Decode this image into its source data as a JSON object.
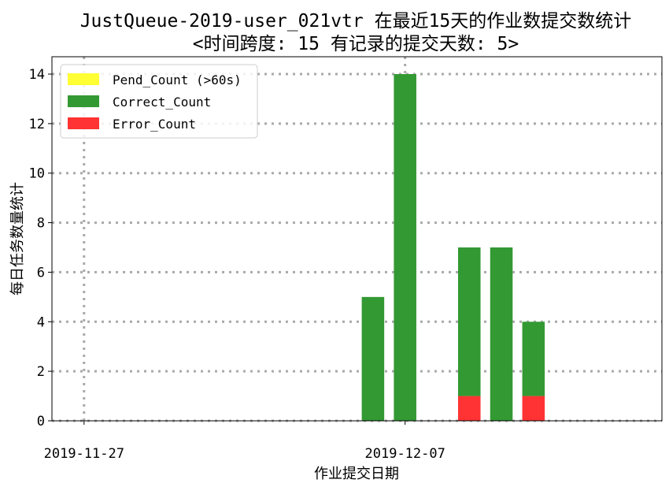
{
  "chart_data": {
    "type": "bar",
    "stacked": true,
    "title_line1": "JustQueue-2019-user_021vtr 在最近15天的作业数提交数统计",
    "title_line2": "<时间跨度: 15  有记录的提交天数: 5>",
    "xlabel": "作业提交日期",
    "ylabel": "每日任务数量统计",
    "x_dates": [
      "2019-12-06",
      "2019-12-07",
      "2019-12-09",
      "2019-12-10",
      "2019-12-11"
    ],
    "x_tick_labels": [
      "2019-11-27",
      "2019-12-07"
    ],
    "x_tick_dates": [
      "2019-11-27",
      "2019-12-07"
    ],
    "xlim": [
      "2019-11-26",
      "2019-12-15"
    ],
    "ylim": [
      0,
      14.7
    ],
    "y_ticks": [
      0,
      2,
      4,
      6,
      8,
      10,
      12,
      14
    ],
    "grid": true,
    "legend_position": "upper-left",
    "series": [
      {
        "name": "Pend_Count (>60s)",
        "color": "#ffff33",
        "values": [
          0,
          0,
          0,
          0,
          0
        ]
      },
      {
        "name": "Correct_Count",
        "color": "#339933",
        "values": [
          5,
          14,
          6,
          7,
          3
        ]
      },
      {
        "name": "Error_Count",
        "color": "#ff3333",
        "values": [
          0,
          0,
          1,
          0,
          1
        ]
      }
    ]
  }
}
